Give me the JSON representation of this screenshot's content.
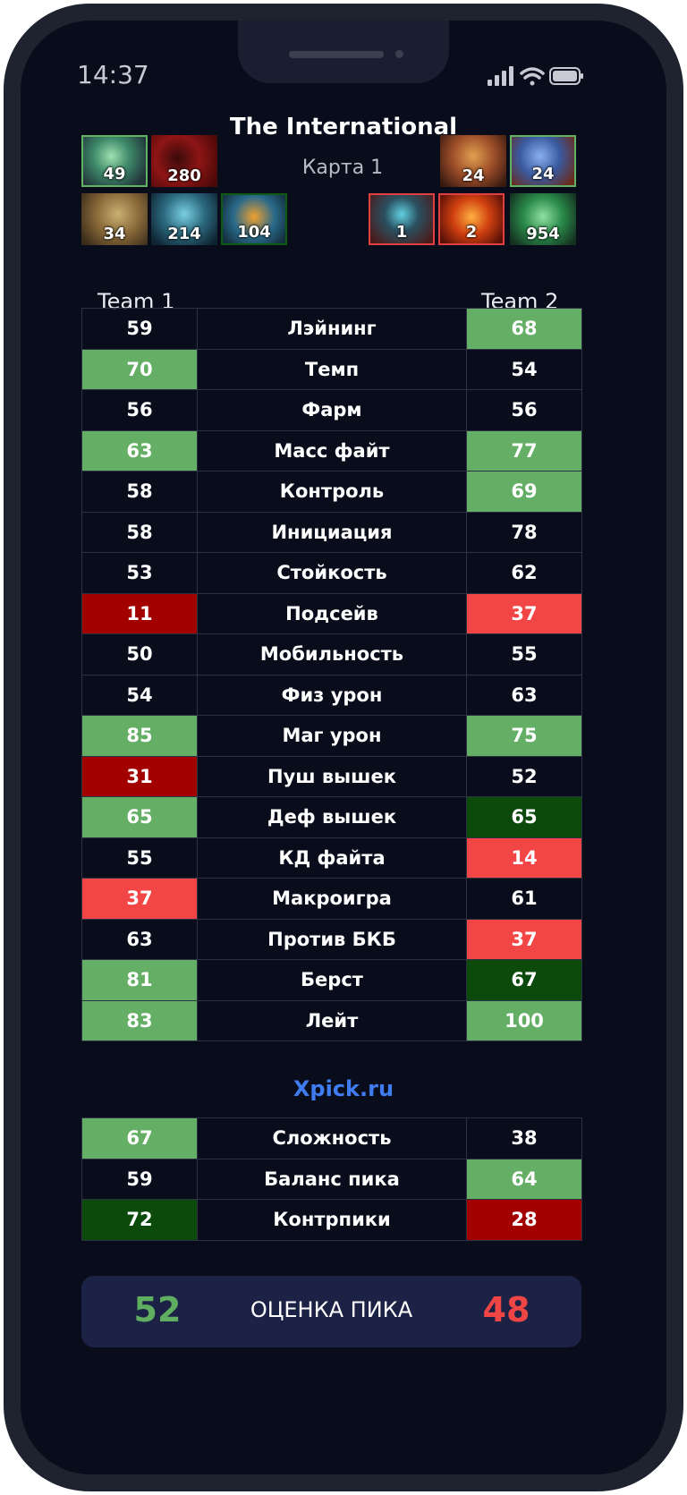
{
  "status_bar": {
    "time": "14:37"
  },
  "title": "The International",
  "map_label": "Карта 1",
  "team1_label": "Team 1",
  "team2_label": "Team 2",
  "heroes": {
    "team1": [
      {
        "value": "49",
        "border": "light-green"
      },
      {
        "value": "280",
        "border": "none"
      },
      {
        "value": "34",
        "border": "none"
      },
      {
        "value": "214",
        "border": "none"
      },
      {
        "value": "104",
        "border": "dark-green"
      }
    ],
    "team2": [
      {
        "value": "24",
        "border": "none"
      },
      {
        "value": "24",
        "border": "light-green"
      },
      {
        "value": "1",
        "border": "red"
      },
      {
        "value": "2",
        "border": "red"
      },
      {
        "value": "954",
        "border": "none"
      }
    ]
  },
  "stats": [
    {
      "label": "Лэйнинг",
      "team1": "59",
      "team2": "68",
      "team1_color": "none",
      "team2_color": "light-green"
    },
    {
      "label": "Темп",
      "team1": "70",
      "team2": "54",
      "team1_color": "light-green",
      "team2_color": "none"
    },
    {
      "label": "Фарм",
      "team1": "56",
      "team2": "56",
      "team1_color": "none",
      "team2_color": "none"
    },
    {
      "label": "Масс файт",
      "team1": "63",
      "team2": "77",
      "team1_color": "light-green",
      "team2_color": "light-green"
    },
    {
      "label": "Контроль",
      "team1": "58",
      "team2": "69",
      "team1_color": "none",
      "team2_color": "light-green"
    },
    {
      "label": "Инициация",
      "team1": "58",
      "team2": "78",
      "team1_color": "none",
      "team2_color": "none"
    },
    {
      "label": "Стойкость",
      "team1": "53",
      "team2": "62",
      "team1_color": "none",
      "team2_color": "none"
    },
    {
      "label": "Подсейв",
      "team1": "11",
      "team2": "37",
      "team1_color": "dark-red",
      "team2_color": "light-red"
    },
    {
      "label": "Мобильность",
      "team1": "50",
      "team2": "55",
      "team1_color": "none",
      "team2_color": "none"
    },
    {
      "label": "Физ урон",
      "team1": "54",
      "team2": "63",
      "team1_color": "none",
      "team2_color": "none"
    },
    {
      "label": "Маг урон",
      "team1": "85",
      "team2": "75",
      "team1_color": "light-green",
      "team2_color": "light-green"
    },
    {
      "label": "Пуш вышек",
      "team1": "31",
      "team2": "52",
      "team1_color": "dark-red",
      "team2_color": "none"
    },
    {
      "label": "Деф вышек",
      "team1": "65",
      "team2": "65",
      "team1_color": "light-green",
      "team2_color": "dark-green"
    },
    {
      "label": "КД файта",
      "team1": "55",
      "team2": "14",
      "team1_color": "none",
      "team2_color": "light-red"
    },
    {
      "label": "Макроигра",
      "team1": "37",
      "team2": "61",
      "team1_color": "light-red",
      "team2_color": "none"
    },
    {
      "label": "Против БКБ",
      "team1": "63",
      "team2": "37",
      "team1_color": "none",
      "team2_color": "light-red"
    },
    {
      "label": "Берст",
      "team1": "81",
      "team2": "67",
      "team1_color": "light-green",
      "team2_color": "dark-green"
    },
    {
      "label": "Лейт",
      "team1": "83",
      "team2": "100",
      "team1_color": "light-green",
      "team2_color": "light-green"
    }
  ],
  "brand": "Xpick.ru",
  "summary": [
    {
      "label": "Сложность",
      "team1": "67",
      "team2": "38",
      "team1_color": "light-green",
      "team2_color": "none"
    },
    {
      "label": "Баланс пика",
      "team1": "59",
      "team2": "64",
      "team1_color": "none",
      "team2_color": "light-green"
    },
    {
      "label": "Контрпики",
      "team1": "72",
      "team2": "28",
      "team1_color": "dark-green",
      "team2_color": "dark-red"
    }
  ],
  "score": {
    "team1": "52",
    "label": "ОЦЕНКА ПИКА",
    "team2": "48"
  },
  "colors": {
    "light-green": "#64ae65",
    "dark-green": "#0c4a0c",
    "dark-red": "#a30000",
    "light-red": "#f24545",
    "brand": "#3e7cf0",
    "background": "#090c1b"
  }
}
